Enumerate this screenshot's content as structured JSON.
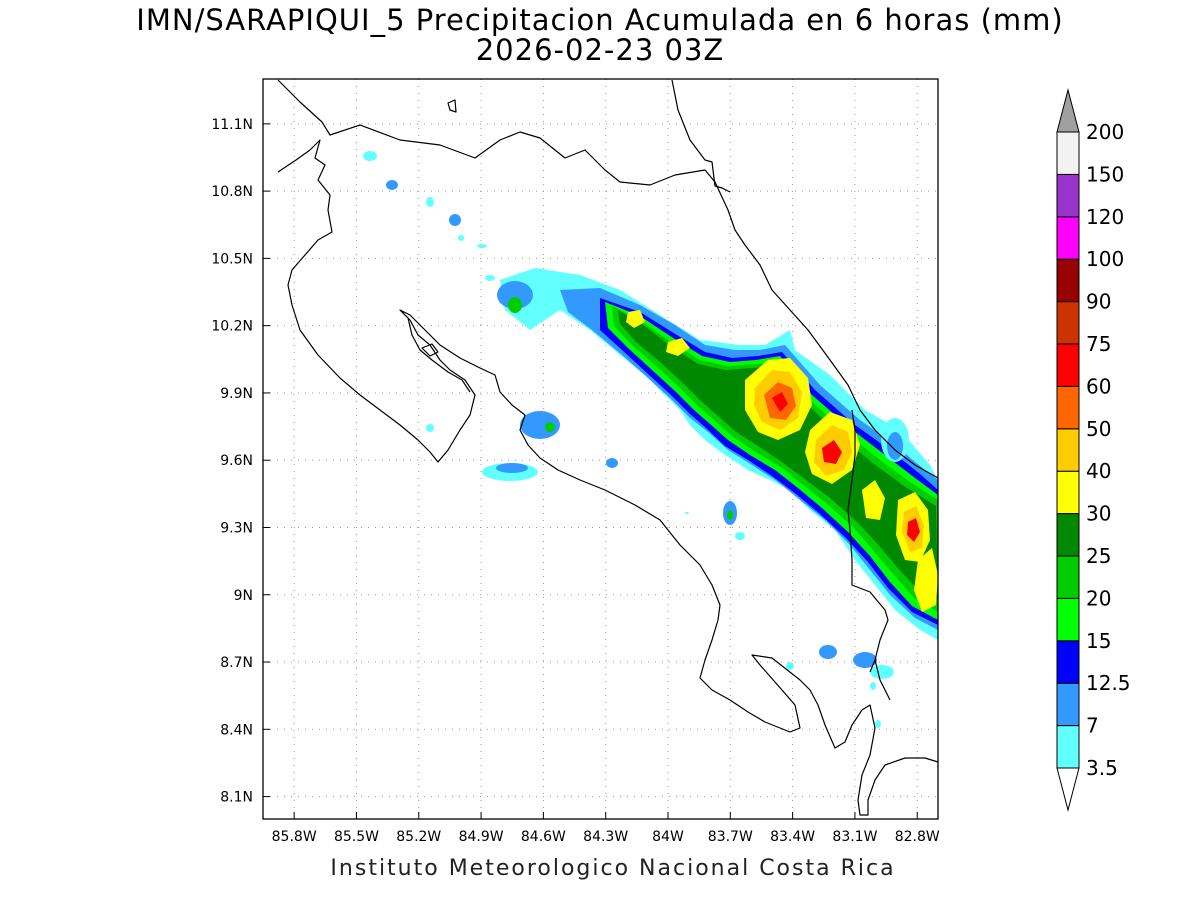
{
  "title": "IMN/SARAPIQUI_5 Precipitacion Acumulada en 6 horas (mm)",
  "subtitle": "2026-02-23 03Z",
  "credit": "Instituto Meteorologico Nacional Costa Rica",
  "map": {
    "lon_range": [
      -85.95,
      -82.7
    ],
    "lat_range": [
      8.0,
      11.3
    ],
    "lat_ticks": [
      {
        "value": 11.1,
        "label": "11.1N"
      },
      {
        "value": 10.8,
        "label": "10.8N"
      },
      {
        "value": 10.5,
        "label": "10.5N"
      },
      {
        "value": 10.2,
        "label": "10.2N"
      },
      {
        "value": 9.9,
        "label": "9.9N"
      },
      {
        "value": 9.6,
        "label": "9.6N"
      },
      {
        "value": 9.3,
        "label": "9.3N"
      },
      {
        "value": 9.0,
        "label": "9N"
      },
      {
        "value": 8.7,
        "label": "8.7N"
      },
      {
        "value": 8.4,
        "label": "8.4N"
      },
      {
        "value": 8.1,
        "label": "8.1N"
      }
    ],
    "lon_ticks": [
      {
        "value": -85.8,
        "label": "85.8W"
      },
      {
        "value": -85.5,
        "label": "85.5W"
      },
      {
        "value": -85.2,
        "label": "85.2W"
      },
      {
        "value": -84.9,
        "label": "84.9W"
      },
      {
        "value": -84.6,
        "label": "84.6W"
      },
      {
        "value": -84.3,
        "label": "84.3W"
      },
      {
        "value": -84.0,
        "label": "84W"
      },
      {
        "value": -83.7,
        "label": "83.7W"
      },
      {
        "value": -83.4,
        "label": "83.4W"
      },
      {
        "value": -83.1,
        "label": "83.1W"
      },
      {
        "value": -82.8,
        "label": "82.8W"
      }
    ],
    "grid": "dotted"
  },
  "legend": {
    "labels": [
      "3.5",
      "7",
      "12.5",
      "15",
      "20",
      "25",
      "30",
      "40",
      "50",
      "60",
      "75",
      "90",
      "100",
      "120",
      "150",
      "200"
    ],
    "colors": [
      "#62FFFF",
      "#3399FF",
      "#0000FF",
      "#00FF00",
      "#00CC00",
      "#008800",
      "#FFFF00",
      "#FFCC00",
      "#FF6600",
      "#FF0000",
      "#CC3300",
      "#990000",
      "#FF00FF",
      "#9933CC",
      "#F2F2F2"
    ],
    "top_triangle_color": "#A0A0A0",
    "bottom_triangle_color": "#FFFFFF"
  },
  "colors": {
    "coastline": "#000000",
    "background": "#FFFFFF"
  }
}
